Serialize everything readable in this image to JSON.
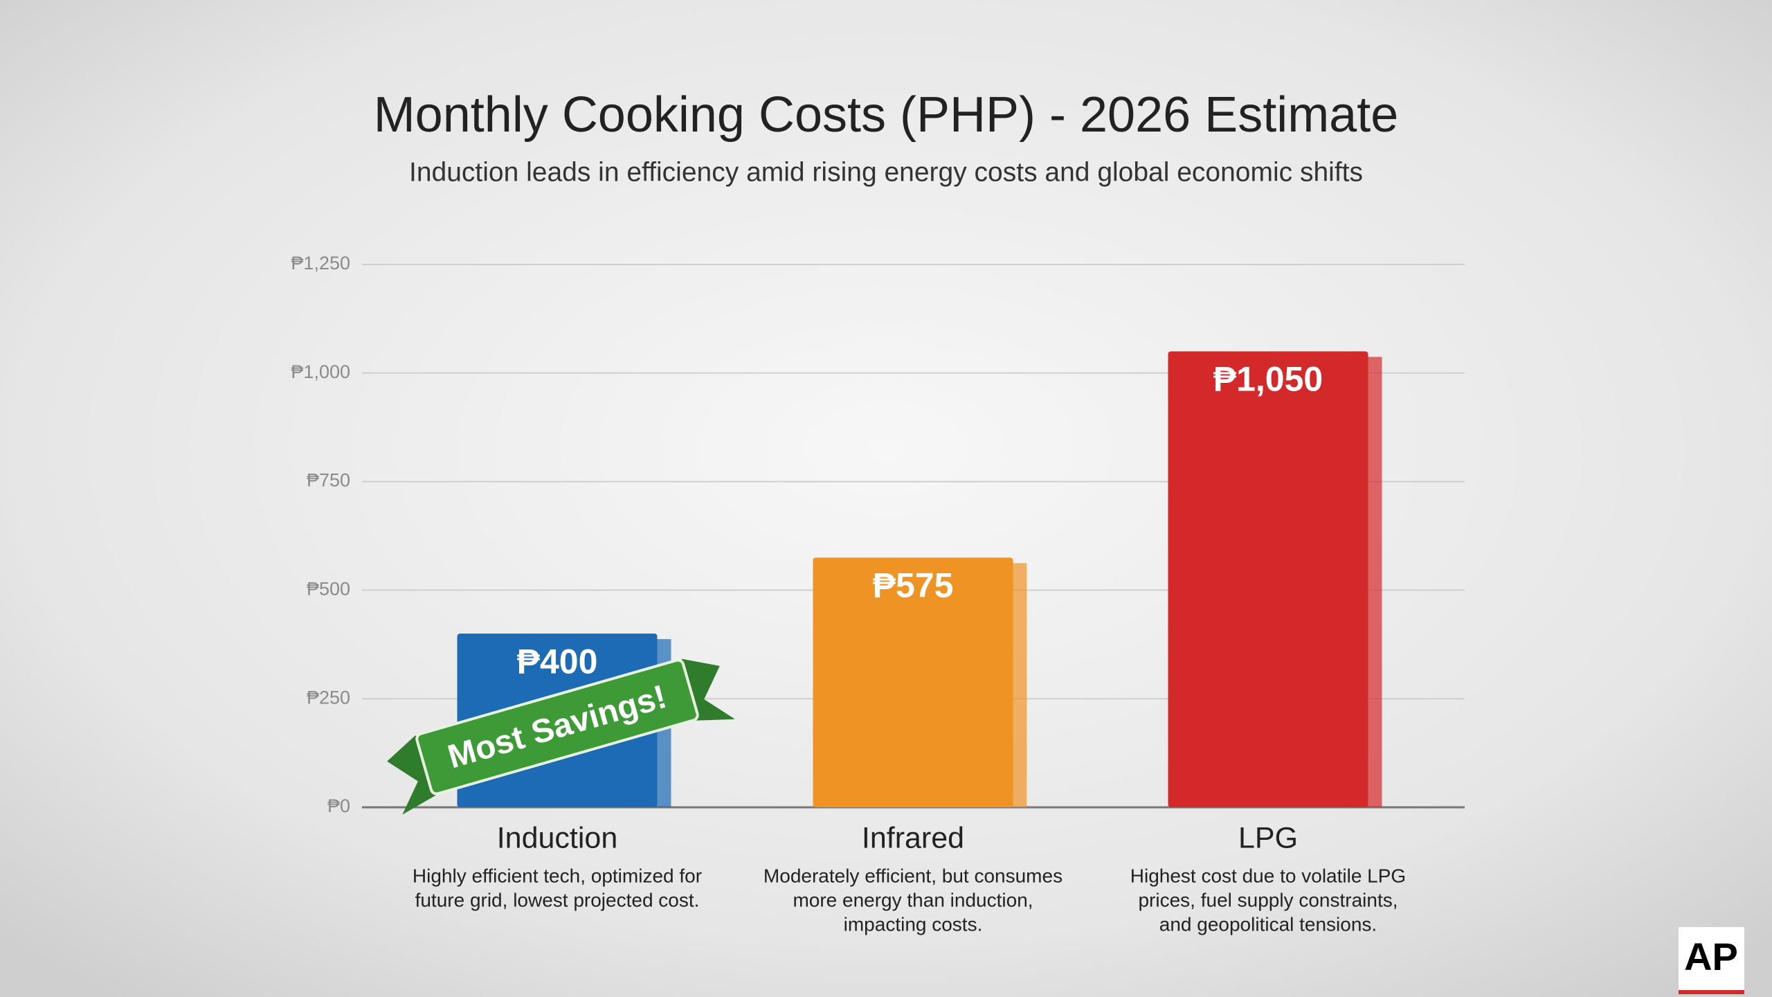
{
  "chart_data": {
    "type": "bar",
    "title": "Monthly Cooking Costs (PHP) - 2026 Estimate",
    "subtitle": "Induction leads in efficiency amid rising energy costs and global economic shifts",
    "categories": [
      "Induction",
      "Infrared",
      "LPG"
    ],
    "descriptions": [
      [
        "Highly efficient tech, optimized for",
        "future grid, lowest projected cost."
      ],
      [
        "Moderately efficient, but consumes",
        "more energy than induction,",
        "impacting costs."
      ],
      [
        "Highest cost due to volatile LPG",
        "prices, fuel supply constraints,",
        "and geopolitical tensions."
      ]
    ],
    "values": [
      400,
      575,
      1050
    ],
    "value_labels": [
      "₱400",
      "₱575",
      "₱1,050"
    ],
    "colors": [
      "#1d6bb4",
      "#ef9424",
      "#d4292a"
    ],
    "ylim": [
      0,
      1250
    ],
    "yticks": [
      {
        "value": 0,
        "label": "₱0"
      },
      {
        "value": 250,
        "label": "₱250"
      },
      {
        "value": 500,
        "label": "₱500"
      },
      {
        "value": 750,
        "label": "₱750"
      },
      {
        "value": 1000,
        "label": "₱1,000"
      },
      {
        "value": 1250,
        "label": "₱1,250"
      }
    ],
    "grid": true,
    "annotation": "Most Savings!",
    "logo": "AP"
  }
}
